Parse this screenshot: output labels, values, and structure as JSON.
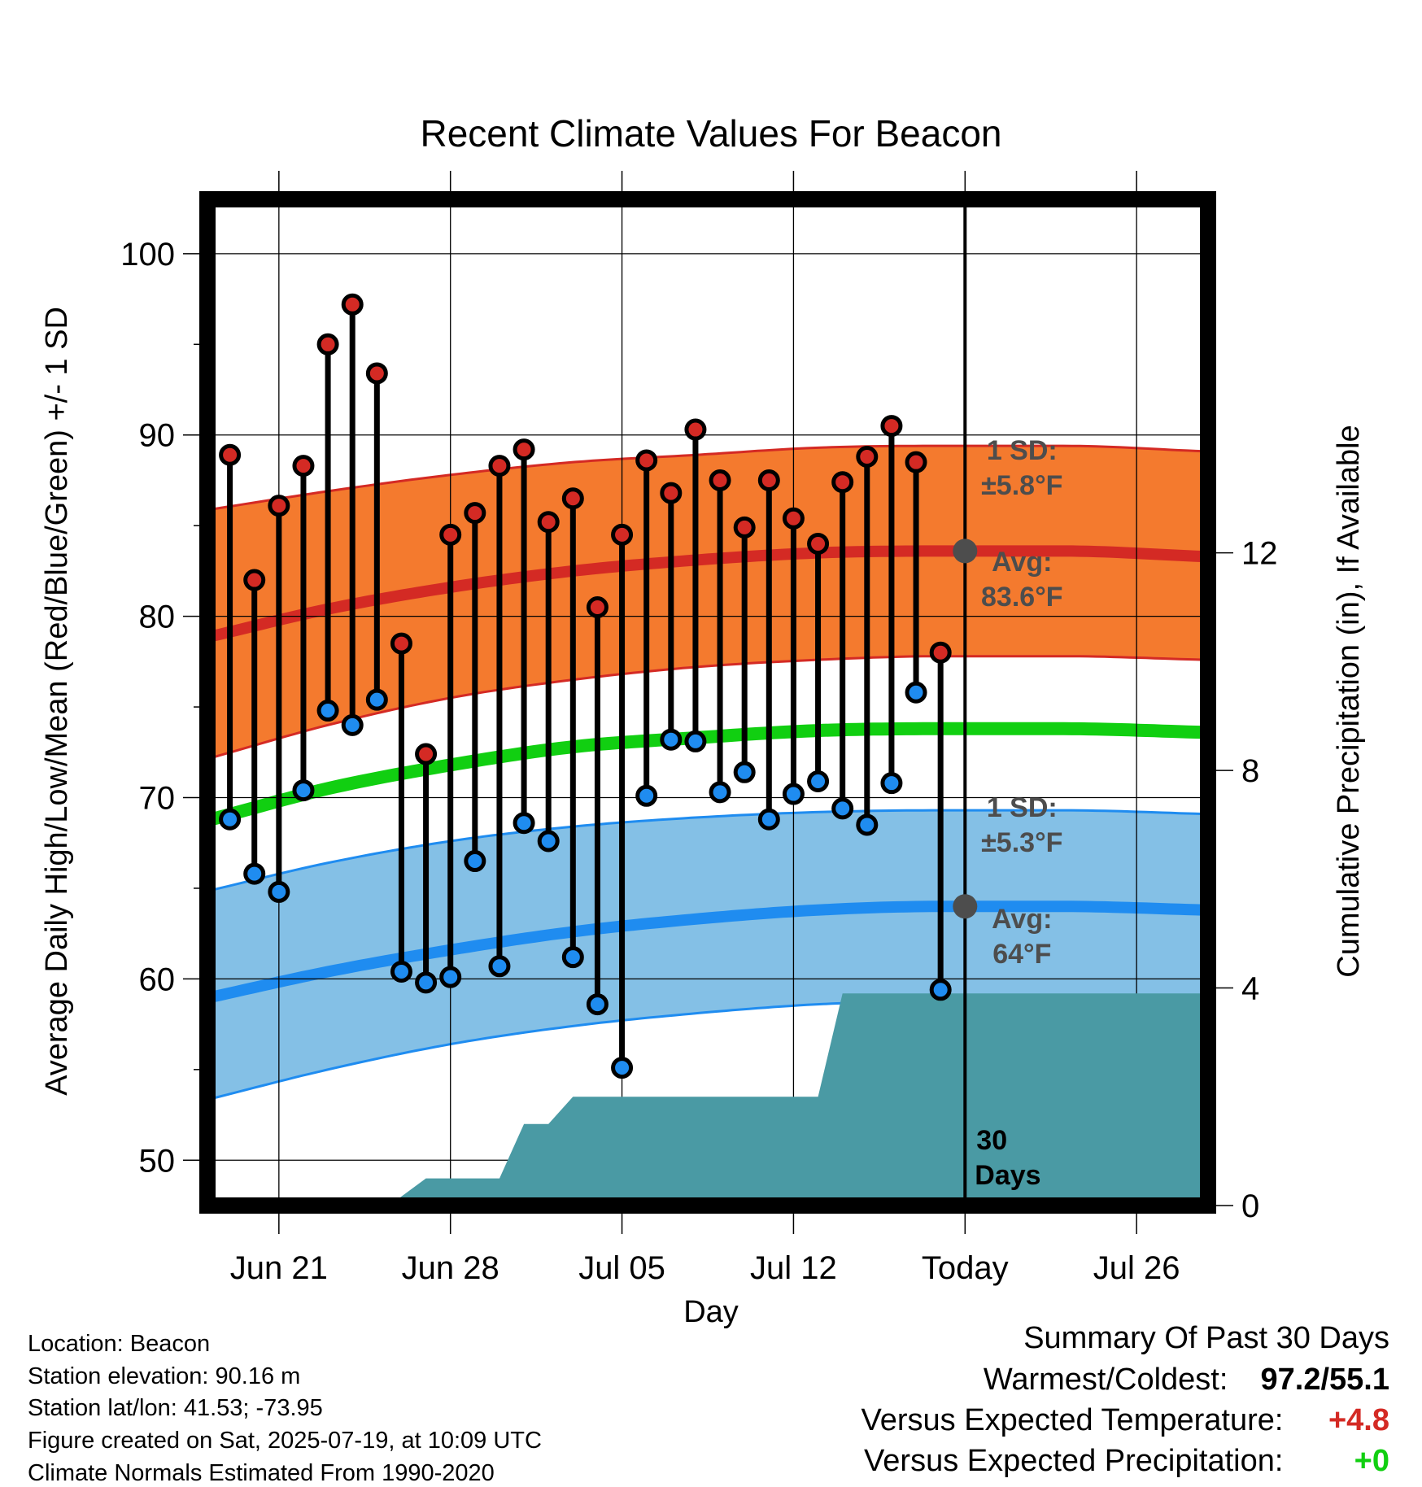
{
  "chart_data": {
    "type": "line",
    "title": "Recent Climate Values For Beacon",
    "xlabel": "Day",
    "ylabel": "Average Daily High/Low/Mean (Red/Blue/Green) +/- 1 SD",
    "y2label": "Cumulative Precipitation (in), If Available",
    "ylim": [
      47.5,
      103
    ],
    "y_ticks": [
      50,
      60,
      70,
      80,
      90,
      100
    ],
    "y2lim": [
      0,
      18.5
    ],
    "y2_ticks": [
      0,
      4,
      8,
      12
    ],
    "x_ticks": [
      {
        "day": 2,
        "label": "Jun 21"
      },
      {
        "day": 9,
        "label": "Jun 28"
      },
      {
        "day": 16,
        "label": "Jul 05"
      },
      {
        "day": 23,
        "label": "Jul 12"
      },
      {
        "day": 30,
        "label": "Today"
      },
      {
        "day": 37,
        "label": "Jul 26"
      }
    ],
    "x_range": [
      -0.75,
      39.75
    ],
    "today_day": 30,
    "grid": true,
    "days": [
      0,
      1,
      2,
      3,
      4,
      5,
      6,
      7,
      8,
      9,
      10,
      11,
      12,
      13,
      14,
      15,
      16,
      17,
      18,
      19,
      20,
      21,
      22,
      23,
      24,
      25,
      26,
      27,
      28,
      29
    ],
    "highs": [
      88.9,
      82.0,
      86.1,
      88.3,
      95.0,
      97.2,
      93.4,
      78.5,
      72.4,
      84.5,
      85.7,
      88.3,
      89.2,
      85.2,
      86.5,
      80.5,
      84.5,
      88.6,
      86.8,
      90.3,
      87.5,
      84.9,
      87.5,
      85.4,
      84.0,
      87.4,
      88.8,
      90.5,
      88.5,
      78.0
    ],
    "lows": [
      68.8,
      65.8,
      64.8,
      70.4,
      74.8,
      74.0,
      75.4,
      60.4,
      59.8,
      60.1,
      66.5,
      60.7,
      68.6,
      67.6,
      61.2,
      58.6,
      55.1,
      70.1,
      73.2,
      73.1,
      70.3,
      71.4,
      68.8,
      70.2,
      70.9,
      69.4,
      68.5,
      70.8,
      75.8,
      59.4
    ],
    "normals": {
      "curve_days": [
        -0.75,
        4,
        9,
        14,
        19,
        24,
        29,
        34,
        39.75
      ],
      "high_avg": [
        78.9,
        80.4,
        81.6,
        82.5,
        83.1,
        83.5,
        83.6,
        83.6,
        83.3
      ],
      "high_sd_upper": [
        85.9,
        86.9,
        87.8,
        88.5,
        88.9,
        89.3,
        89.4,
        89.4,
        89.1
      ],
      "high_sd_lower": [
        72.2,
        74.0,
        75.5,
        76.5,
        77.2,
        77.6,
        77.8,
        77.8,
        77.6
      ],
      "mean_avg": [
        68.8,
        70.5,
        71.8,
        72.8,
        73.3,
        73.7,
        73.8,
        73.8,
        73.6
      ],
      "low_avg": [
        59.0,
        60.4,
        61.6,
        62.6,
        63.3,
        63.8,
        64.0,
        64.0,
        63.8
      ],
      "low_sd_upper": [
        64.9,
        66.4,
        67.6,
        68.4,
        68.9,
        69.2,
        69.3,
        69.3,
        69.1
      ],
      "low_sd_lower": [
        53.4,
        55.0,
        56.4,
        57.4,
        58.1,
        58.6,
        58.8,
        58.9,
        58.7
      ]
    },
    "precip_cumulative": {
      "days": [
        -0.75,
        6.5,
        8.0,
        8.5,
        10.0,
        11.0,
        12.0,
        13.0,
        14.0,
        15.0,
        16.0,
        17.0,
        18.0,
        19.0,
        20.0,
        21.0,
        22.0,
        23.0,
        24.0,
        25.0,
        26.0,
        27.0,
        28.0,
        29.0,
        30.0,
        31.0,
        39.75
      ],
      "values": [
        0,
        0,
        0.5,
        0.5,
        0.5,
        0.5,
        1.5,
        1.5,
        2.0,
        2.0,
        2.0,
        2.0,
        2.0,
        2.0,
        2.0,
        2.0,
        2.0,
        2.0,
        2.0,
        3.9,
        3.9,
        3.9,
        3.9,
        3.9,
        3.9,
        3.9,
        3.9
      ]
    },
    "annotations": {
      "high_sd_1": "1 SD:",
      "high_sd_2": "±5.8°F",
      "high_avg_1": "Avg:",
      "high_avg_2": "83.6°F",
      "low_sd_1": "1 SD:",
      "low_sd_2": "±5.3°F",
      "low_avg_1": "Avg:",
      "low_avg_2": "64°F",
      "days_1": "30",
      "days_2": "Days"
    },
    "colors": {
      "high_band": "#f47a2e",
      "high_line": "#d42a24",
      "low_band": "#84c0e6",
      "low_line": "#1f8cf0",
      "mean_line": "#11cf11",
      "precip": "#4a9aa4",
      "high_dot": "#d42a24",
      "low_dot": "#1f8cf0",
      "annotation": "#4d4d4d"
    }
  },
  "info": {
    "location": "Location: Beacon",
    "elevation": "Station elevation: 90.16 m",
    "latlon": "Station lat/lon: 41.53; -73.95",
    "created": "Figure created on Sat, 2025-07-19, at 10:09 UTC",
    "normals": "Climate Normals Estimated From 1990-2020"
  },
  "summary": {
    "title": "Summary Of Past 30 Days",
    "warm_cold_label": "Warmest/Coldest:",
    "warm_cold_value": "97.2/55.1",
    "temp_label": "Versus Expected Temperature:",
    "temp_value": "+4.8",
    "temp_color": "#d42a24",
    "precip_label": "Versus Expected Precipitation:",
    "precip_value": "+0",
    "precip_color": "#11cf11"
  }
}
